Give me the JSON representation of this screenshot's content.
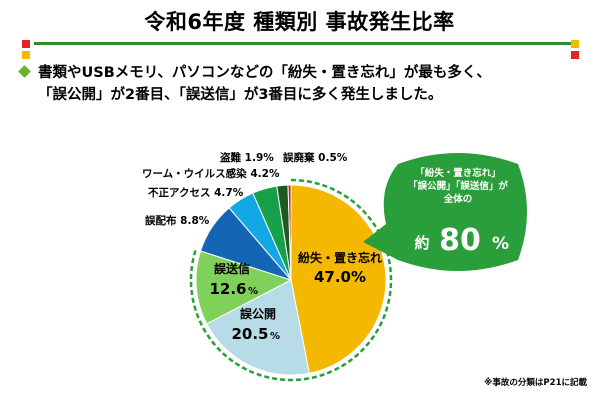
{
  "page": {
    "title": "令和6年度 種類別 事故発生比率",
    "subtitle_lines": [
      "書類やUSBメモリ、パソコンなどの「紛失・置き忘れ」が最も多く、",
      "「誤公開」が2番目、「誤送信」が3番目に多く発生しました。"
    ],
    "footnote": "※事故の分類はP21に記載",
    "accent_colors": {
      "green": "#2e8b2e",
      "red": "#e8231f",
      "yellow": "#f5b800"
    }
  },
  "callout": {
    "lines": [
      "「紛失・置き忘れ」",
      "「誤公開」「誤送信」が",
      "全体の"
    ],
    "prefix": "約",
    "value": "80",
    "unit": "%",
    "color": "#2a9e3a"
  },
  "chart_data": {
    "type": "pie",
    "unit": "%",
    "slices": [
      {
        "label": "紛失・置き忘れ",
        "value": 47.0,
        "value_text": "47.0",
        "color": "#f5b800"
      },
      {
        "label": "誤公開",
        "value": 20.5,
        "value_text": "20.5",
        "color": "#b8dbe8"
      },
      {
        "label": "誤送信",
        "value": 12.6,
        "value_text": "12.6",
        "color": "#7fd15a"
      },
      {
        "label": "誤配布",
        "value": 8.8,
        "value_text": "8.8",
        "color": "#1466b4"
      },
      {
        "label": "不正アクセス",
        "value": 4.7,
        "value_text": "4.7",
        "color": "#12a8e4"
      },
      {
        "label": "ワーム・ウイルス感染",
        "value": 4.2,
        "value_text": "4.2",
        "color": "#17a04a"
      },
      {
        "label": "盗難",
        "value": 1.9,
        "value_text": "1.9",
        "color": "#1f5a1f"
      },
      {
        "label": "誤廃棄",
        "value": 0.5,
        "value_text": "0.5",
        "color": "#d11a1a"
      }
    ]
  }
}
